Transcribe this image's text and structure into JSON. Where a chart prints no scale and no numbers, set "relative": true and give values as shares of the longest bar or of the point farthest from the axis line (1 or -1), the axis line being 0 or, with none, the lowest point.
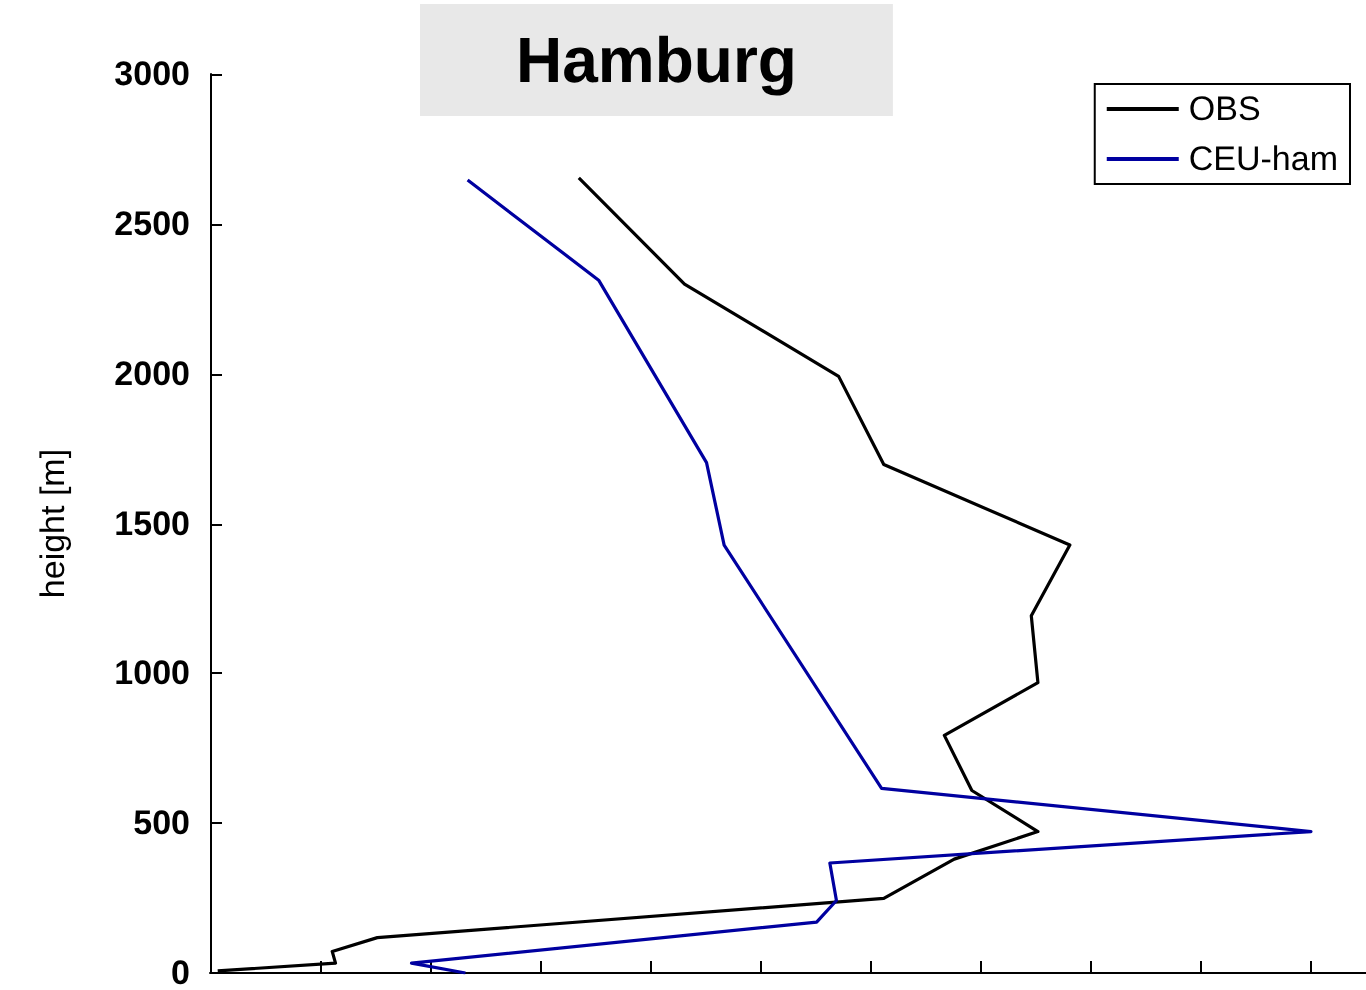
{
  "chart_data": {
    "type": "line",
    "orientation": "horizontal",
    "title": "Hamburg",
    "ylabel": "height [m]",
    "relative": true,
    "tick_labels": "y",
    "ylim": [
      0,
      3000
    ],
    "yticks": [
      0,
      500,
      1000,
      1500,
      2000,
      2500,
      3000
    ],
    "grid": false,
    "legend": "top right",
    "marker": "none",
    "line_style": "solid",
    "series": [
      {
        "name": "OBS",
        "color": "#000000",
        "x": [
          2653,
          2299,
          1991,
          1697,
          1428,
          1192,
          969,
          793,
          609,
          472,
          380,
          249,
          118,
          72,
          33,
          7
        ],
        "values": [
          0.335,
          0.431,
          0.571,
          0.612,
          0.781,
          0.746,
          0.752,
          0.667,
          0.692,
          0.752,
          0.676,
          0.612,
          0.152,
          0.111,
          0.114,
          0.007
        ]
      },
      {
        "name": "CEU-ham",
        "color": "#0000a0",
        "x": [
          2646,
          2312,
          1703,
          1428,
          616,
          472,
          367,
          242,
          170,
          33,
          0
        ],
        "values": [
          0.234,
          0.353,
          0.451,
          0.467,
          0.61,
          1.0,
          0.563,
          0.569,
          0.551,
          0.183,
          0.232
        ]
      }
    ]
  }
}
